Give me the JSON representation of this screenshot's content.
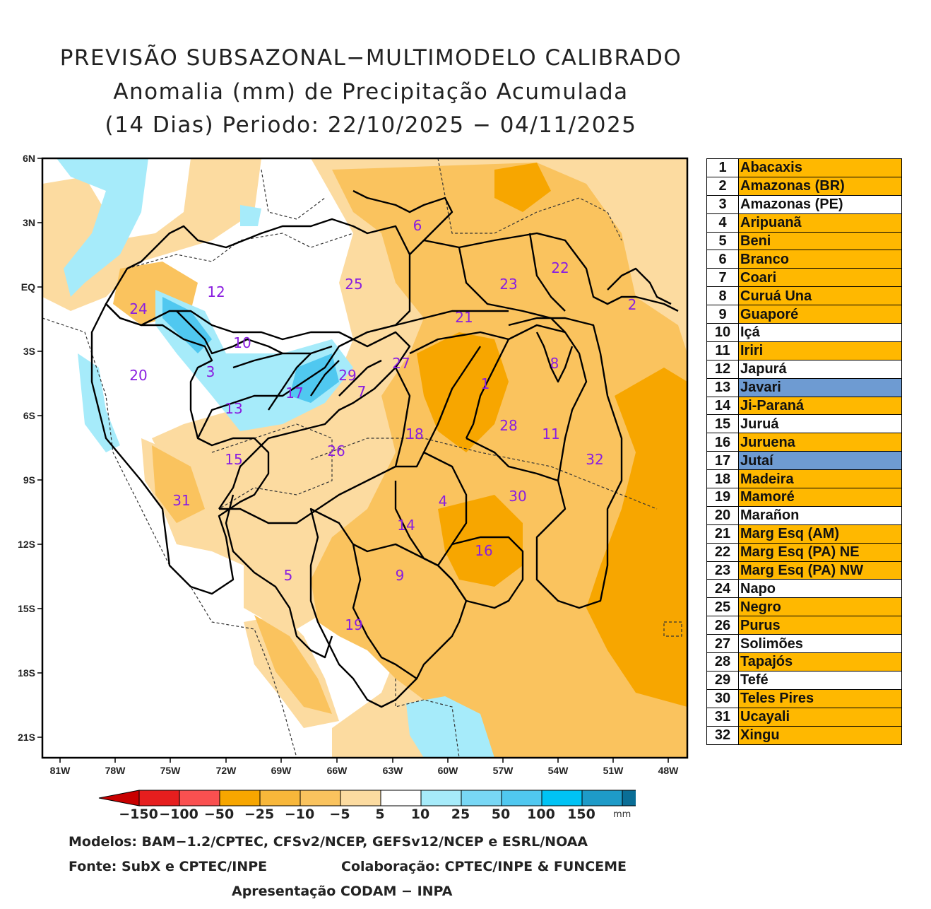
{
  "title": {
    "line1": "PREVISÃO SUBSAZONAL−MULTIMODELO CALIBRADO",
    "line2": "Anomalia (mm) de Precipitação Acumulada",
    "line3": "(14 Dias) Periodo: 22/10/2025 − 04/11/2025"
  },
  "axes": {
    "lat_labels": [
      "6N",
      "3N",
      "EQ",
      "3S",
      "6S",
      "9S",
      "12S",
      "15S",
      "18S",
      "21S"
    ],
    "lon_labels": [
      "81W",
      "78W",
      "75W",
      "72W",
      "69W",
      "66W",
      "63W",
      "60W",
      "57W",
      "54W",
      "51W",
      "48W"
    ]
  },
  "colors": {
    "orange_strong": "#f7a600",
    "orange_mid": "#fac35e",
    "orange_light": "#fcdba0",
    "blue_light": "#a6ebfa",
    "blue_mid": "#50c8f0",
    "highlight_orange": "#ffb800",
    "highlight_blue": "#6e9bd2",
    "basin_label": "#8a1ee0"
  },
  "basin_labels": [
    "1",
    "2",
    "3",
    "4",
    "5",
    "6",
    "7",
    "8",
    "9",
    "10",
    "11",
    "12",
    "13",
    "14",
    "15",
    "16",
    "17",
    "18",
    "19",
    "20",
    "21",
    "22",
    "23",
    "24",
    "25",
    "26",
    "27",
    "28",
    "29",
    "30",
    "31",
    "32"
  ],
  "basins": [
    {
      "num": "1",
      "name": "Abacaxis",
      "color": "#ffb800"
    },
    {
      "num": "2",
      "name": "Amazonas (BR)",
      "color": "#ffb800"
    },
    {
      "num": "3",
      "name": "Amazonas (PE)",
      "color": "#ffffff"
    },
    {
      "num": "4",
      "name": "Aripuanã",
      "color": "#ffb800"
    },
    {
      "num": "5",
      "name": "Beni",
      "color": "#ffb800"
    },
    {
      "num": "6",
      "name": "Branco",
      "color": "#ffb800"
    },
    {
      "num": "7",
      "name": "Coari",
      "color": "#ffb800"
    },
    {
      "num": "8",
      "name": "Curuá Una",
      "color": "#ffb800"
    },
    {
      "num": "9",
      "name": "Guaporé",
      "color": "#ffb800"
    },
    {
      "num": "10",
      "name": "Içá",
      "color": "#ffffff"
    },
    {
      "num": "11",
      "name": "Iriri",
      "color": "#ffb800"
    },
    {
      "num": "12",
      "name": "Japurá",
      "color": "#ffffff"
    },
    {
      "num": "13",
      "name": "Javari",
      "color": "#6e9bd2"
    },
    {
      "num": "14",
      "name": "Ji-Paraná",
      "color": "#ffb800"
    },
    {
      "num": "15",
      "name": "Juruá",
      "color": "#ffffff"
    },
    {
      "num": "16",
      "name": "Juruena",
      "color": "#ffb800"
    },
    {
      "num": "17",
      "name": "Jutaí",
      "color": "#6e9bd2"
    },
    {
      "num": "18",
      "name": "Madeira",
      "color": "#ffb800"
    },
    {
      "num": "19",
      "name": "Mamoré",
      "color": "#ffb800"
    },
    {
      "num": "20",
      "name": "Marañon",
      "color": "#ffffff"
    },
    {
      "num": "21",
      "name": "Marg Esq (AM)",
      "color": "#ffb800"
    },
    {
      "num": "22",
      "name": "Marg Esq (PA) NE",
      "color": "#ffb800"
    },
    {
      "num": "23",
      "name": "Marg Esq (PA) NW",
      "color": "#ffb800"
    },
    {
      "num": "24",
      "name": "Napo",
      "color": "#ffffff"
    },
    {
      "num": "25",
      "name": "Negro",
      "color": "#ffb800"
    },
    {
      "num": "26",
      "name": "Purus",
      "color": "#ffb800"
    },
    {
      "num": "27",
      "name": "Solimões",
      "color": "#ffffff"
    },
    {
      "num": "28",
      "name": "Tapajós",
      "color": "#ffb800"
    },
    {
      "num": "29",
      "name": "Tefé",
      "color": "#ffffff"
    },
    {
      "num": "30",
      "name": "Teles Pires",
      "color": "#ffb800"
    },
    {
      "num": "31",
      "name": "Ucayali",
      "color": "#ffb800"
    },
    {
      "num": "32",
      "name": "Xingu",
      "color": "#ffb800"
    }
  ],
  "colorbar": {
    "ticks": [
      "−150",
      "−100",
      "−50",
      "−25",
      "−10",
      "−5",
      "5",
      "10",
      "25",
      "50",
      "100",
      "150"
    ],
    "unit": "mm",
    "colors": [
      "#c80000",
      "#e61e1e",
      "#fa5050",
      "#f7a600",
      "#f8b73a",
      "#fac35e",
      "#fcdba0",
      "#ffffff",
      "#a6ebfa",
      "#78d7f5",
      "#50c8f0",
      "#00c3f5",
      "#1e9bc8",
      "#0a6e96",
      "#0a4b6e"
    ]
  },
  "credits": {
    "models": "Modelos: BAM−1.2/CPTEC, CFSv2/NCEP, GEFSv12/NCEP e ESRL/NOAA",
    "source": "Fonte: SubX e CPTEC/INPE",
    "collab": "Colaboração: CPTEC/INPE & FUNCEME",
    "presentation": "Apresentação CODAM − INPA"
  }
}
